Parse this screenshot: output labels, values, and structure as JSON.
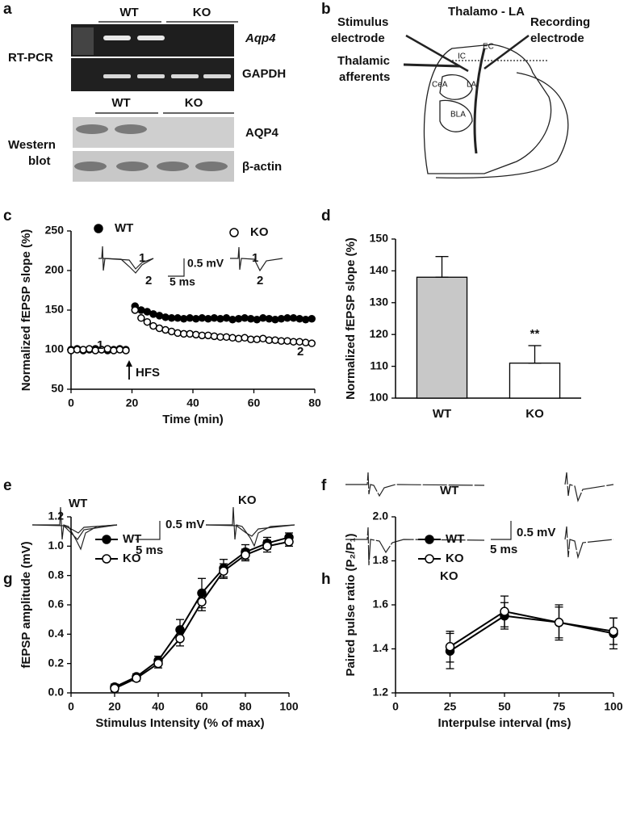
{
  "panels": {
    "a": {
      "label": "a",
      "rtpcr_groups": [
        "WT",
        "KO"
      ],
      "rtpcr_title": "RT-PCR",
      "rtpcr_bands": [
        "Aqp4",
        "GAPDH"
      ],
      "western_groups": [
        "WT",
        "KO"
      ],
      "western_title": [
        "Western",
        "blot"
      ],
      "western_bands": [
        "AQP4",
        "β-actin"
      ]
    },
    "b": {
      "label": "b",
      "title": "Thalamo - LA",
      "stimulus": [
        "Stimulus",
        "electrode"
      ],
      "recording": [
        "Recording",
        "electrode"
      ],
      "afferents": [
        "Thalamic",
        "afferents"
      ],
      "regions": [
        "IC",
        "EC",
        "CeA",
        "LA",
        "BLA"
      ]
    },
    "e": {
      "label": "e",
      "groups": [
        "WT",
        "KO"
      ],
      "scale_y": "0.5 mV",
      "scale_x": "5 ms"
    },
    "f": {
      "label": "f",
      "groups": [
        "WT",
        "KO"
      ],
      "scale_y": "0.5 mV",
      "scale_x": "5 ms"
    }
  },
  "chart_data": [
    {
      "type": "scatter",
      "label": "c",
      "ylabel": "Normalized fEPSP slope (%)",
      "xlabel": "Time (min)",
      "x": [
        0,
        2,
        4,
        6,
        8,
        10,
        12,
        14,
        16,
        18,
        21,
        23,
        25,
        27,
        29,
        31,
        33,
        35,
        37,
        39,
        41,
        43,
        45,
        47,
        49,
        51,
        53,
        55,
        57,
        59,
        61,
        63,
        65,
        67,
        69,
        71,
        73,
        75,
        77,
        79
      ],
      "series": [
        {
          "name": "WT",
          "color": "#000000",
          "filled": true,
          "values": [
            100,
            101,
            99,
            100,
            101,
            100,
            99,
            100,
            101,
            100,
            155,
            150,
            148,
            145,
            143,
            141,
            140,
            140,
            139,
            140,
            139,
            140,
            139,
            140,
            139,
            140,
            138,
            139,
            140,
            139,
            138,
            140,
            139,
            138,
            139,
            140,
            140,
            139,
            138,
            139
          ]
        },
        {
          "name": "KO",
          "color": "#000000",
          "filled": false,
          "values": [
            99,
            100,
            100,
            101,
            99,
            100,
            101,
            99,
            100,
            99,
            150,
            140,
            135,
            130,
            127,
            125,
            123,
            121,
            120,
            120,
            119,
            118,
            118,
            117,
            116,
            116,
            115,
            114,
            115,
            113,
            113,
            114,
            112,
            112,
            111,
            111,
            110,
            110,
            109,
            108
          ]
        }
      ],
      "annotations": [
        "1",
        "2",
        "HFS",
        "1",
        "2",
        "0.5 mV",
        "5 ms",
        "1",
        "2"
      ],
      "xlim": [
        0,
        80
      ],
      "xticks": [
        0,
        20,
        40,
        60,
        80
      ],
      "ylim": [
        50,
        250
      ],
      "yticks": [
        50,
        100,
        150,
        200,
        250
      ]
    },
    {
      "type": "bar",
      "label": "d",
      "ylabel": "Normalized fEPSP slope (%)",
      "categories": [
        "WT",
        "KO"
      ],
      "values": [
        138,
        111
      ],
      "errors": [
        6.5,
        5.5
      ],
      "colors": [
        "#c8c8c8",
        "#ffffff"
      ],
      "annotations": [
        "**"
      ],
      "ylim": [
        100,
        150
      ],
      "yticks": [
        100,
        110,
        120,
        130,
        140,
        150
      ]
    },
    {
      "type": "line",
      "label": "g",
      "ylabel": "fEPSP amplitude (mV)",
      "xlabel": "Stimulus Intensity (% of max)",
      "x": [
        20,
        30,
        40,
        50,
        60,
        70,
        80,
        90,
        100
      ],
      "series": [
        {
          "name": "WT",
          "color": "#000000",
          "filled": true,
          "values": [
            0.04,
            0.11,
            0.22,
            0.43,
            0.68,
            0.85,
            0.96,
            1.02,
            1.06
          ],
          "errors": [
            0.02,
            0.02,
            0.03,
            0.07,
            0.1,
            0.06,
            0.05,
            0.04,
            0.03
          ]
        },
        {
          "name": "KO",
          "color": "#000000",
          "filled": false,
          "values": [
            0.03,
            0.1,
            0.2,
            0.37,
            0.62,
            0.83,
            0.94,
            1.0,
            1.03
          ],
          "errors": [
            0.02,
            0.02,
            0.03,
            0.05,
            0.06,
            0.05,
            0.04,
            0.04,
            0.03
          ]
        }
      ],
      "xlim": [
        0,
        100
      ],
      "xticks": [
        0,
        20,
        40,
        60,
        80,
        100
      ],
      "ylim": [
        0,
        1.2
      ],
      "yticks": [
        {
          "value": 0,
          "label": "0.0"
        },
        0.2,
        0.4,
        0.6,
        0.8,
        {
          "value": 1,
          "label": "1.0"
        },
        1.2
      ]
    },
    {
      "type": "line",
      "label": "h",
      "ylabel": "Paired pulse ratio (P₂/P₁)",
      "xlabel": "Interpulse interval (ms)",
      "x": [
        25,
        50,
        75,
        100
      ],
      "series": [
        {
          "name": "WT",
          "color": "#000000",
          "filled": true,
          "values": [
            1.39,
            1.55,
            1.52,
            1.47
          ],
          "errors": [
            0.08,
            0.06,
            0.08,
            0.07
          ]
        },
        {
          "name": "KO",
          "color": "#000000",
          "filled": false,
          "values": [
            1.41,
            1.57,
            1.52,
            1.48
          ],
          "errors": [
            0.07,
            0.07,
            0.07,
            0.06
          ]
        }
      ],
      "xlim": [
        0,
        100
      ],
      "xticks": [
        0,
        25,
        50,
        75,
        100
      ],
      "ylim": [
        1.2,
        2.0
      ],
      "yticks": [
        1.2,
        1.4,
        1.6,
        1.8,
        {
          "value": 2,
          "label": "2.0"
        }
      ]
    }
  ]
}
